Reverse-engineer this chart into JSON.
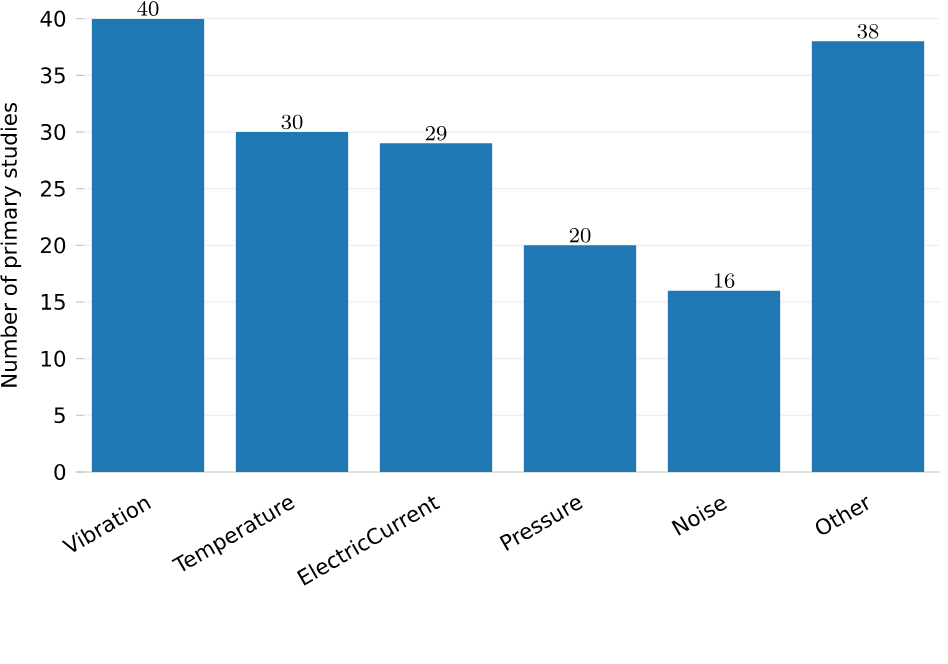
{
  "chart_data": {
    "type": "bar",
    "ylabel": "Number of primary studies",
    "categories": [
      "Vibration",
      "Temperature",
      "ElectricCurrent",
      "Pressure",
      "Noise",
      "Other"
    ],
    "values": [
      40,
      30,
      29,
      20,
      16,
      38
    ],
    "color": "#1f77b4",
    "ylim": [
      0,
      40
    ],
    "yticks": [
      0,
      5,
      10,
      15,
      20,
      25,
      30,
      35,
      40
    ],
    "grid": "y",
    "data_labels": true
  }
}
